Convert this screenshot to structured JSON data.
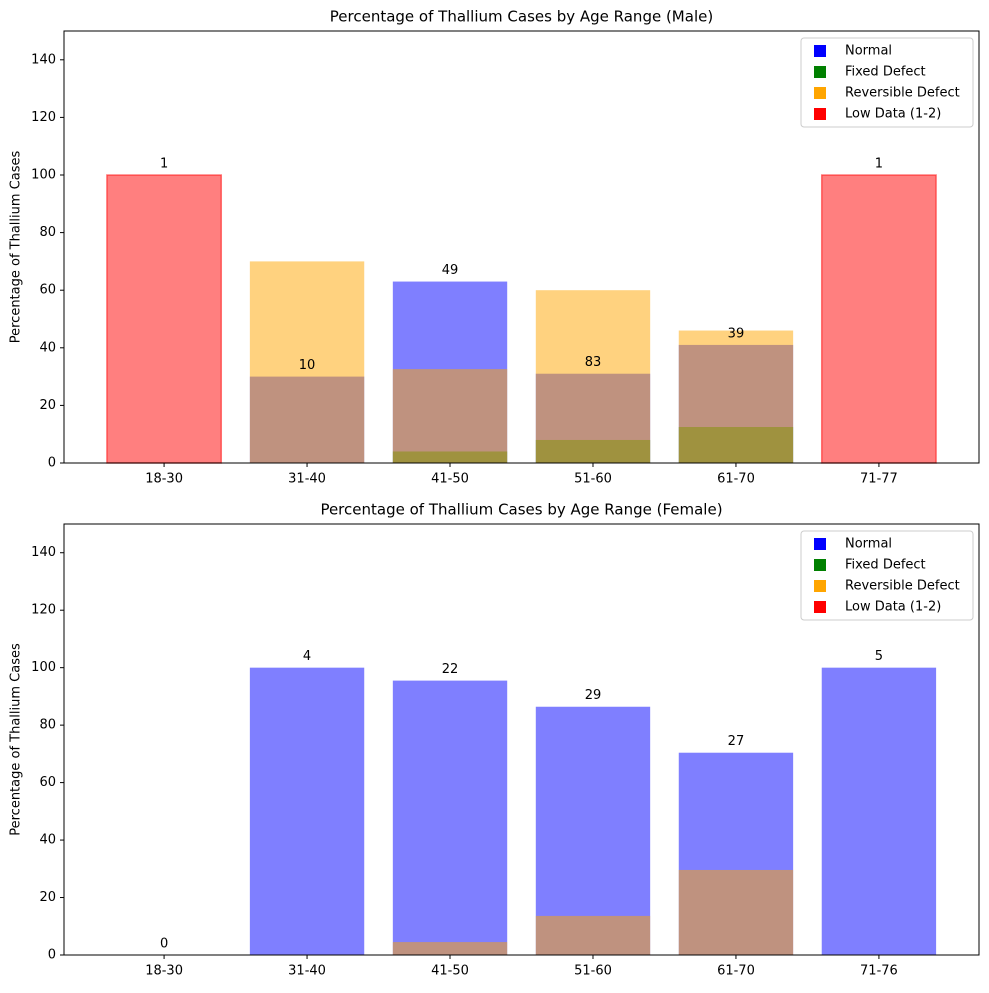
{
  "chart_data": [
    {
      "type": "bar",
      "title": "Percentage of Thallium Cases by Age Range (Male)",
      "ylabel": "Percentage of Thallium Cases",
      "categories": [
        "18-30",
        "31-40",
        "41-50",
        "51-60",
        "61-70",
        "71-77"
      ],
      "series": [
        {
          "name": "Normal",
          "color": "blue",
          "values": [
            null,
            30,
            63,
            31,
            41,
            null
          ]
        },
        {
          "name": "Fixed Defect",
          "color": "green",
          "values": [
            null,
            null,
            4,
            8,
            12.5,
            null
          ]
        },
        {
          "name": "Reversible Defect",
          "color": "orange",
          "values": [
            null,
            70,
            32.6,
            60,
            46,
            null
          ]
        },
        {
          "name": "Low Data (1-2)",
          "color": "red",
          "edgecolor": "red",
          "values": [
            100,
            null,
            null,
            null,
            null,
            100
          ]
        }
      ],
      "counts": [
        1,
        10,
        49,
        83,
        39,
        1
      ],
      "alpha": 0.5,
      "ylim": [
        0,
        150
      ],
      "yticks": [
        0,
        20,
        40,
        60,
        80,
        100,
        120,
        140
      ],
      "legend": "upper right"
    },
    {
      "type": "bar",
      "title": "Percentage of Thallium Cases by Age Range (Female)",
      "ylabel": "Percentage of Thallium Cases",
      "categories": [
        "18-30",
        "31-40",
        "41-50",
        "51-60",
        "61-70",
        "71-76"
      ],
      "series": [
        {
          "name": "Normal",
          "color": "blue",
          "values": [
            null,
            100,
            95.5,
            86.4,
            70.4,
            100
          ]
        },
        {
          "name": "Fixed Defect",
          "color": "green",
          "values": [
            null,
            null,
            null,
            null,
            null,
            null
          ]
        },
        {
          "name": "Reversible Defect",
          "color": "orange",
          "values": [
            null,
            null,
            4.5,
            13.6,
            29.6,
            null
          ]
        },
        {
          "name": "Low Data (1-2)",
          "color": "red",
          "edgecolor": "red",
          "values": [
            0,
            null,
            null,
            null,
            null,
            null
          ]
        }
      ],
      "counts": [
        0,
        4,
        22,
        29,
        27,
        5
      ],
      "alpha": 0.5,
      "ylim": [
        0,
        150
      ],
      "yticks": [
        0,
        20,
        40,
        60,
        80,
        100,
        120,
        140
      ],
      "legend": "upper right"
    }
  ]
}
